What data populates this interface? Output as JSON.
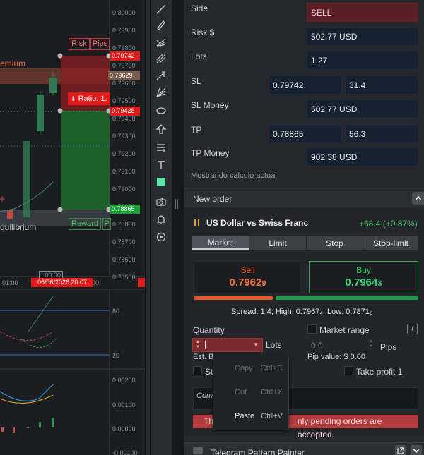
{
  "chart": {
    "price_axis": [
      "0.80000",
      "0.79900",
      "0.79800",
      "0.79700",
      "0.79600",
      "0.79500",
      "0.79400",
      "0.79300",
      "0.79200",
      "0.79100",
      "0.79000",
      "0.78900",
      "0.78800",
      "0.78700",
      "0.78600",
      "0.78500"
    ],
    "risk_label": "Risk",
    "pips_label": "Pips",
    "premium_label": "emium",
    "equilibrium_label": "quilibrium",
    "ratio_label": "Ratio: 1.",
    "reward_label": "Reward",
    "reward_pips_stub": "P",
    "price_badges": {
      "sl": "0.79742",
      "current": "0.79629",
      "entry": "0.79428",
      "tp": "0.78865"
    },
    "time_label": "01:00",
    "time_label_2": "00",
    "time_badge": "06/06/2026 20:07",
    "crosshair_time": "00:00",
    "rsi_levels": [
      "80",
      "20"
    ],
    "macd_levels": [
      "0.00200",
      "0.00100",
      "0.00000",
      "-0.00100"
    ]
  },
  "form": {
    "side": {
      "label": "Side",
      "value": "SELL"
    },
    "risk": {
      "label": "Risk $",
      "value": "502.77 USD"
    },
    "lots": {
      "label": "Lots",
      "value": "1.27"
    },
    "sl": {
      "label": "SL",
      "price": "0.79742",
      "pips": "31.4"
    },
    "sl_money": {
      "label": "SL Money",
      "value": "502.77 USD"
    },
    "tp": {
      "label": "TP",
      "price": "0.78865",
      "pips": "56.3"
    },
    "tp_money": {
      "label": "TP Money",
      "value": "902.38 USD"
    },
    "footer_note": "Mostrando calculo actual"
  },
  "new_order": {
    "title": "New order",
    "symbol": "US Dollar vs Swiss Franc",
    "change": "+68.4 (+0.87%)",
    "tabs": [
      "Market",
      "Limit",
      "Stop",
      "Stop-limit"
    ],
    "sell": {
      "label": "Sell",
      "price_main": "0.7962",
      "price_small": "9"
    },
    "buy": {
      "label": "Buy",
      "price_main": "0.7964",
      "price_small": "3"
    },
    "stats": "Spread: 1.4; High: 0.7967₄; Low: 0.7871₆",
    "quantity_label": "Quantity",
    "lots_unit": "Lots",
    "market_range_label": "Market range",
    "info_icon_text": "i",
    "pips_value": "0.0",
    "pips_unit": "Pips",
    "est_prefix": "Est. B",
    "pip_value_text": "Pip value: $ 0.00",
    "sl_stub": "St",
    "take_profit_label": "Take profit 1",
    "comment_stub": "Com",
    "warning_prefix": "Th",
    "warning_suffix": "nly pending orders are accepted."
  },
  "context_menu": {
    "items": [
      {
        "label": "Copy",
        "shortcut": "Ctrl+C",
        "enabled": false
      },
      {
        "label": "Cut",
        "shortcut": "Ctrl+X",
        "enabled": false
      },
      {
        "label": "Paste",
        "shortcut": "Ctrl+V",
        "enabled": true
      }
    ]
  },
  "telegram": {
    "title": "Telegram Pattern Painter"
  },
  "colors": {
    "sell": "#e8592a",
    "buy": "#2ecc71",
    "badge_red": "#e31a1a",
    "badge_green": "#17a036",
    "accent_green": "#4cbf6a"
  }
}
